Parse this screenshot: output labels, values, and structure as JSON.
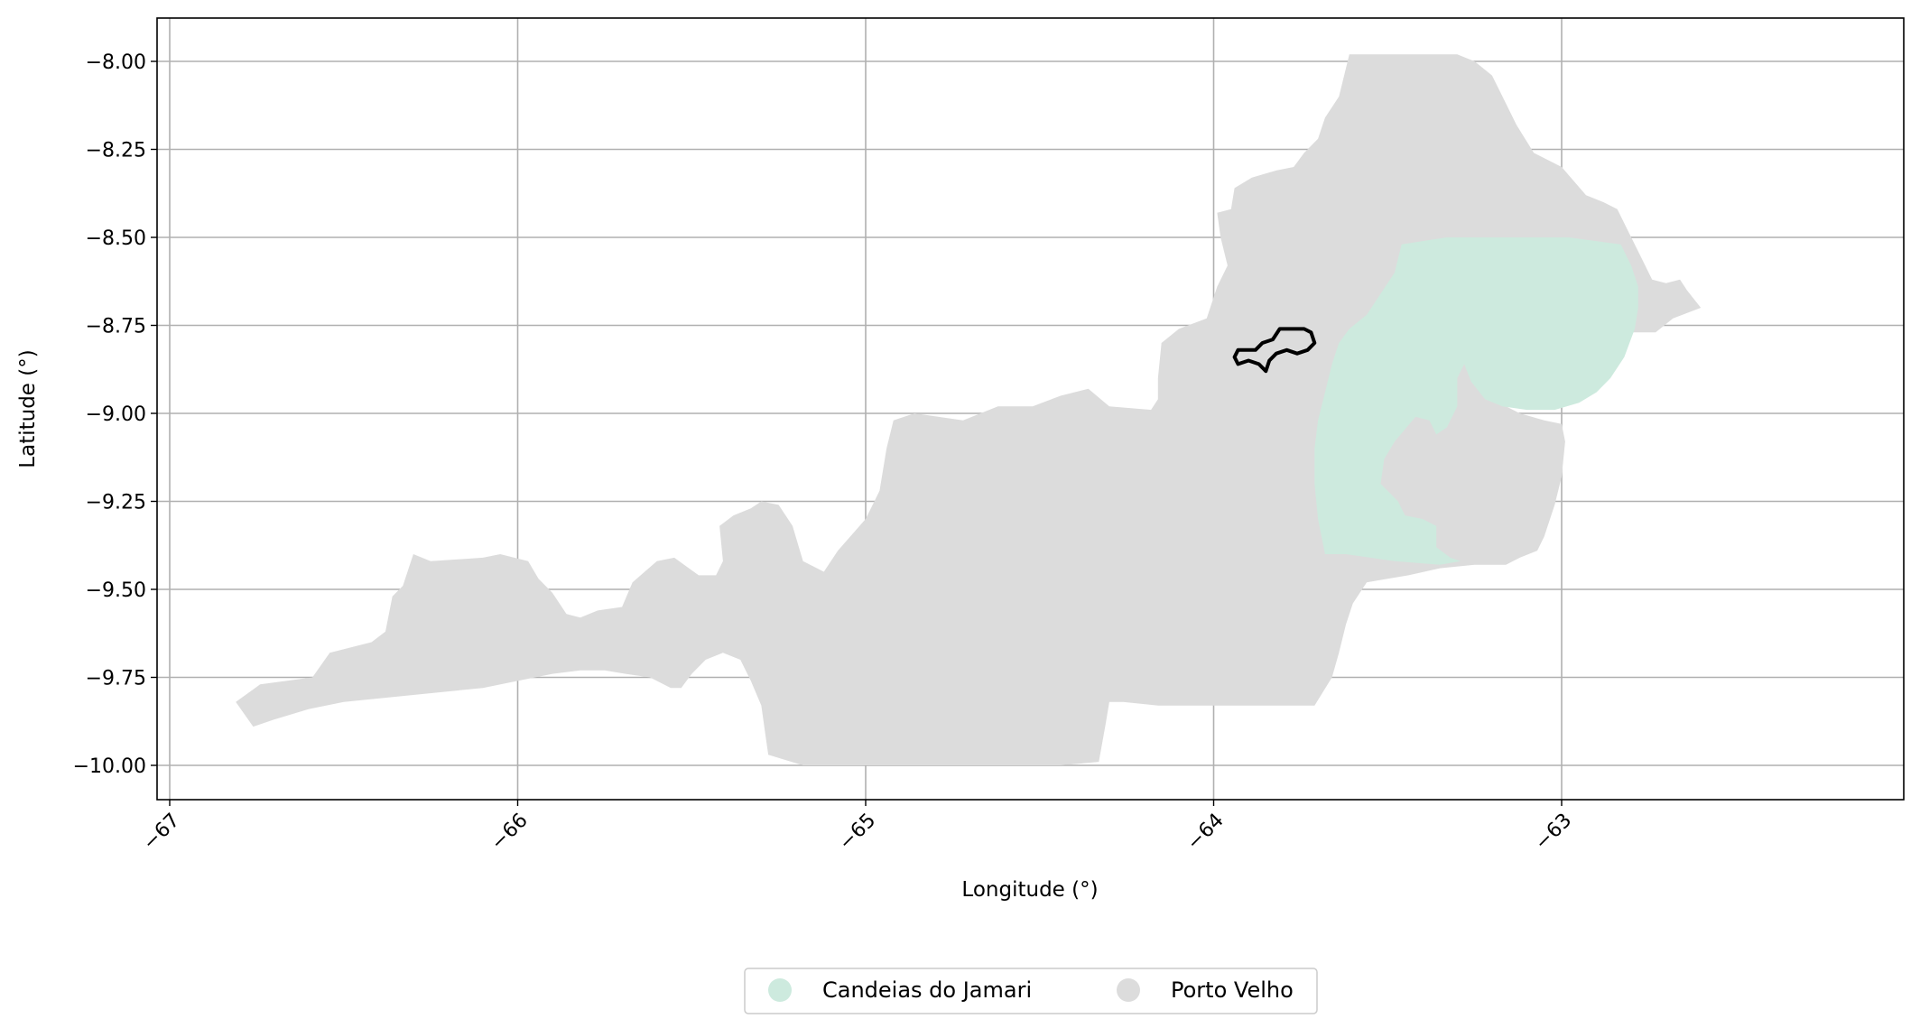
{
  "map": {
    "xlabel": "Longitude (°)",
    "ylabel": "Latitude (°)",
    "xlim": [
      -67.03,
      -61.9
    ],
    "ylim": [
      -10.1,
      -7.88
    ],
    "grid": true,
    "x_ticks": [
      {
        "value": -67,
        "label": "−67"
      },
      {
        "value": -66,
        "label": "−66"
      },
      {
        "value": -65,
        "label": "−65"
      },
      {
        "value": -64,
        "label": "−64"
      },
      {
        "value": -63,
        "label": "−63"
      }
    ],
    "y_ticks": [
      {
        "value": -8.0,
        "label": "−8.00"
      },
      {
        "value": -8.25,
        "label": "−8.25"
      },
      {
        "value": -8.5,
        "label": "−8.50"
      },
      {
        "value": -8.75,
        "label": "−8.75"
      },
      {
        "value": -9.0,
        "label": "−9.00"
      },
      {
        "value": -9.25,
        "label": "−9.25"
      },
      {
        "value": -9.5,
        "label": "−9.50"
      },
      {
        "value": -9.75,
        "label": "−9.75"
      },
      {
        "value": -10.0,
        "label": "−10.00"
      }
    ],
    "regions": [
      {
        "name": "Porto Velho",
        "color": "#dcdcdc",
        "coords": [
          [
            -66.81,
            -9.82
          ],
          [
            -66.74,
            -9.77
          ],
          [
            -66.59,
            -9.75
          ],
          [
            -66.54,
            -9.68
          ],
          [
            -66.42,
            -9.65
          ],
          [
            -66.38,
            -9.62
          ],
          [
            -66.36,
            -9.52
          ],
          [
            -66.33,
            -9.49
          ],
          [
            -66.3,
            -9.4
          ],
          [
            -66.25,
            -9.42
          ],
          [
            -66.1,
            -9.41
          ],
          [
            -66.05,
            -9.4
          ],
          [
            -65.97,
            -9.42
          ],
          [
            -65.94,
            -9.47
          ],
          [
            -65.9,
            -9.51
          ],
          [
            -65.86,
            -9.57
          ],
          [
            -65.82,
            -9.58
          ],
          [
            -65.77,
            -9.56
          ],
          [
            -65.7,
            -9.55
          ],
          [
            -65.67,
            -9.48
          ],
          [
            -65.6,
            -9.42
          ],
          [
            -65.55,
            -9.41
          ],
          [
            -65.48,
            -9.46
          ],
          [
            -65.43,
            -9.46
          ],
          [
            -65.41,
            -9.42
          ],
          [
            -65.42,
            -9.32
          ],
          [
            -65.38,
            -9.29
          ],
          [
            -65.33,
            -9.27
          ],
          [
            -65.3,
            -9.25
          ],
          [
            -65.25,
            -9.26
          ],
          [
            -65.21,
            -9.32
          ],
          [
            -65.18,
            -9.42
          ],
          [
            -65.12,
            -9.45
          ],
          [
            -65.08,
            -9.39
          ],
          [
            -65.0,
            -9.3
          ],
          [
            -64.96,
            -9.22
          ],
          [
            -64.94,
            -9.1
          ],
          [
            -64.92,
            -9.02
          ],
          [
            -64.86,
            -9.0
          ],
          [
            -64.72,
            -9.02
          ],
          [
            -64.62,
            -8.98
          ],
          [
            -64.52,
            -8.98
          ],
          [
            -64.44,
            -8.95
          ],
          [
            -64.36,
            -8.93
          ],
          [
            -64.3,
            -8.98
          ],
          [
            -64.18,
            -8.99
          ],
          [
            -64.16,
            -8.96
          ],
          [
            -64.16,
            -8.9
          ],
          [
            -64.15,
            -8.8
          ],
          [
            -64.1,
            -8.76
          ],
          [
            -64.02,
            -8.73
          ],
          [
            -63.99,
            -8.64
          ],
          [
            -63.96,
            -8.58
          ],
          [
            -63.98,
            -8.5
          ],
          [
            -63.99,
            -8.43
          ],
          [
            -63.95,
            -8.42
          ],
          [
            -63.94,
            -8.36
          ],
          [
            -63.89,
            -8.33
          ],
          [
            -63.82,
            -8.31
          ],
          [
            -63.77,
            -8.3
          ],
          [
            -63.74,
            -8.26
          ],
          [
            -63.7,
            -8.22
          ],
          [
            -63.68,
            -8.16
          ],
          [
            -63.64,
            -8.1
          ],
          [
            -63.62,
            -8.02
          ],
          [
            -63.61,
            -7.98
          ],
          [
            -63.46,
            -7.98
          ],
          [
            -63.3,
            -7.98
          ],
          [
            -63.25,
            -8.0
          ],
          [
            -63.2,
            -8.04
          ],
          [
            -63.17,
            -8.1
          ],
          [
            -63.13,
            -8.18
          ],
          [
            -63.08,
            -8.26
          ],
          [
            -63.0,
            -8.3
          ],
          [
            -62.93,
            -8.38
          ],
          [
            -62.88,
            -8.4
          ],
          [
            -62.84,
            -8.42
          ],
          [
            -62.8,
            -8.5
          ],
          [
            -62.77,
            -8.56
          ],
          [
            -62.74,
            -8.62
          ],
          [
            -62.7,
            -8.63
          ],
          [
            -62.66,
            -8.62
          ],
          [
            -62.64,
            -8.65
          ],
          [
            -62.6,
            -8.7
          ],
          [
            -62.68,
            -8.73
          ],
          [
            -62.73,
            -8.77
          ],
          [
            -62.8,
            -8.77
          ],
          [
            -62.88,
            -8.76
          ],
          [
            -62.97,
            -8.77
          ],
          [
            -63.06,
            -8.79
          ],
          [
            -63.17,
            -8.8
          ],
          [
            -63.24,
            -8.8
          ],
          [
            -63.22,
            -8.87
          ],
          [
            -63.2,
            -8.93
          ],
          [
            -63.18,
            -8.97
          ],
          [
            -63.12,
            -9.0
          ],
          [
            -63.05,
            -9.02
          ],
          [
            -63.0,
            -9.03
          ],
          [
            -62.99,
            -9.08
          ],
          [
            -63.0,
            -9.18
          ],
          [
            -63.02,
            -9.26
          ],
          [
            -63.05,
            -9.35
          ],
          [
            -63.07,
            -9.39
          ],
          [
            -63.12,
            -9.41
          ],
          [
            -63.16,
            -9.43
          ],
          [
            -63.25,
            -9.43
          ],
          [
            -63.35,
            -9.44
          ],
          [
            -63.44,
            -9.46
          ],
          [
            -63.56,
            -9.48
          ],
          [
            -63.6,
            -9.54
          ],
          [
            -63.62,
            -9.6
          ],
          [
            -63.64,
            -9.68
          ],
          [
            -63.66,
            -9.75
          ],
          [
            -63.71,
            -9.83
          ],
          [
            -63.86,
            -9.83
          ],
          [
            -64.0,
            -9.83
          ],
          [
            -64.16,
            -9.83
          ],
          [
            -64.26,
            -9.82
          ],
          [
            -64.3,
            -9.82
          ],
          [
            -64.31,
            -9.88
          ],
          [
            -64.33,
            -9.99
          ],
          [
            -64.44,
            -10.0
          ],
          [
            -64.6,
            -10.0
          ],
          [
            -64.8,
            -10.0
          ],
          [
            -65.0,
            -10.0
          ],
          [
            -65.18,
            -10.0
          ],
          [
            -65.28,
            -9.97
          ],
          [
            -65.29,
            -9.9
          ],
          [
            -65.3,
            -9.83
          ],
          [
            -65.33,
            -9.76
          ],
          [
            -65.36,
            -9.7
          ],
          [
            -65.41,
            -9.68
          ],
          [
            -65.46,
            -9.7
          ],
          [
            -65.5,
            -9.74
          ],
          [
            -65.53,
            -9.78
          ],
          [
            -65.56,
            -9.78
          ],
          [
            -65.62,
            -9.75
          ],
          [
            -65.69,
            -9.74
          ],
          [
            -65.75,
            -9.73
          ],
          [
            -65.82,
            -9.73
          ],
          [
            -65.9,
            -9.74
          ],
          [
            -66.0,
            -9.76
          ],
          [
            -66.1,
            -9.78
          ],
          [
            -66.2,
            -9.79
          ],
          [
            -66.3,
            -9.8
          ],
          [
            -66.4,
            -9.81
          ],
          [
            -66.5,
            -9.82
          ],
          [
            -66.6,
            -9.84
          ],
          [
            -66.7,
            -9.87
          ],
          [
            -66.76,
            -9.89
          ]
        ]
      },
      {
        "name": "Candeias do Jamari",
        "color": "#cdeade",
        "coords": [
          [
            -63.46,
            -8.52
          ],
          [
            -63.33,
            -8.5
          ],
          [
            -63.15,
            -8.5
          ],
          [
            -62.98,
            -8.5
          ],
          [
            -62.83,
            -8.52
          ],
          [
            -62.8,
            -8.58
          ],
          [
            -62.78,
            -8.64
          ],
          [
            -62.78,
            -8.7
          ],
          [
            -62.79,
            -8.76
          ],
          [
            -62.82,
            -8.84
          ],
          [
            -62.86,
            -8.9
          ],
          [
            -62.9,
            -8.94
          ],
          [
            -62.95,
            -8.97
          ],
          [
            -63.02,
            -8.99
          ],
          [
            -63.1,
            -8.99
          ],
          [
            -63.17,
            -8.98
          ],
          [
            -63.22,
            -8.96
          ],
          [
            -63.26,
            -8.91
          ],
          [
            -63.28,
            -8.86
          ],
          [
            -63.3,
            -8.9
          ],
          [
            -63.3,
            -8.98
          ],
          [
            -63.33,
            -9.04
          ],
          [
            -63.36,
            -9.06
          ],
          [
            -63.38,
            -9.02
          ],
          [
            -63.42,
            -9.01
          ],
          [
            -63.48,
            -9.08
          ],
          [
            -63.51,
            -9.13
          ],
          [
            -63.52,
            -9.2
          ],
          [
            -63.47,
            -9.25
          ],
          [
            -63.45,
            -9.29
          ],
          [
            -63.4,
            -9.3
          ],
          [
            -63.36,
            -9.32
          ],
          [
            -63.36,
            -9.38
          ],
          [
            -63.32,
            -9.41
          ],
          [
            -63.29,
            -9.42
          ],
          [
            -63.35,
            -9.43
          ],
          [
            -63.48,
            -9.42
          ],
          [
            -63.62,
            -9.4
          ],
          [
            -63.68,
            -9.4
          ],
          [
            -63.7,
            -9.3
          ],
          [
            -63.71,
            -9.2
          ],
          [
            -63.71,
            -9.1
          ],
          [
            -63.7,
            -9.02
          ],
          [
            -63.68,
            -8.94
          ],
          [
            -63.66,
            -8.86
          ],
          [
            -63.64,
            -8.8
          ],
          [
            -63.61,
            -8.76
          ],
          [
            -63.56,
            -8.72
          ],
          [
            -63.52,
            -8.66
          ],
          [
            -63.48,
            -8.6
          ]
        ]
      }
    ],
    "outline": {
      "name": "highlighted boundary",
      "color": "#000000",
      "coords": [
        [
          -63.93,
          -8.82
        ],
        [
          -63.88,
          -8.82
        ],
        [
          -63.86,
          -8.8
        ],
        [
          -63.83,
          -8.79
        ],
        [
          -63.81,
          -8.76
        ],
        [
          -63.78,
          -8.76
        ],
        [
          -63.74,
          -8.76
        ],
        [
          -63.72,
          -8.77
        ],
        [
          -63.71,
          -8.8
        ],
        [
          -63.73,
          -8.82
        ],
        [
          -63.76,
          -8.83
        ],
        [
          -63.79,
          -8.82
        ],
        [
          -63.82,
          -8.83
        ],
        [
          -63.84,
          -8.85
        ],
        [
          -63.85,
          -8.88
        ],
        [
          -63.87,
          -8.86
        ],
        [
          -63.9,
          -8.85
        ],
        [
          -63.93,
          -8.86
        ],
        [
          -63.94,
          -8.84
        ]
      ]
    },
    "legend": {
      "placement": "bottom-center",
      "items": [
        {
          "label": "Candeias do Jamari",
          "color": "#cdeade"
        },
        {
          "label": "Porto Velho",
          "color": "#dcdcdc"
        }
      ]
    }
  }
}
